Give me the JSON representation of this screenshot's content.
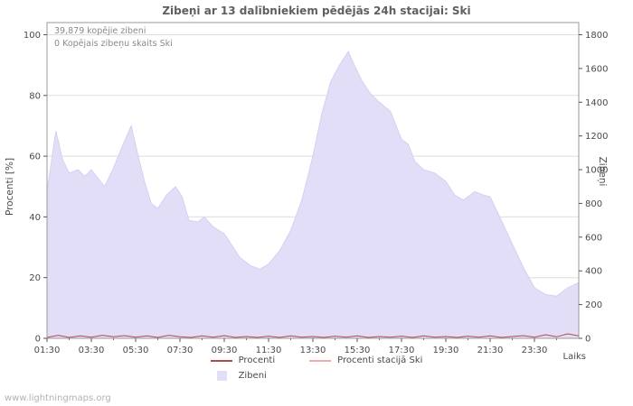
{
  "title": "Zibeņi ar 13 dalībniekiem pēdējās 24h stacijai: Ski",
  "watermark": "www.lightningmaps.org",
  "annotations": {
    "total": "39,879 kopējie zibeni",
    "station": "0 Kopējais zibeņu skaits Ski"
  },
  "axes": {
    "left_label": "Procenti  [%]",
    "right_label": "Zibeņi",
    "x_label": "Laiks",
    "left_ticks": [
      0,
      20,
      40,
      60,
      80,
      100
    ],
    "right_ticks": [
      0,
      200,
      400,
      600,
      800,
      1000,
      1200,
      1400,
      1600,
      1800
    ],
    "x_ticks": [
      "01:30",
      "03:30",
      "05:30",
      "07:30",
      "09:30",
      "11:30",
      "13:30",
      "15:30",
      "17:30",
      "19:30",
      "21:30",
      "23:30"
    ]
  },
  "legend": [
    {
      "label": "Procenti",
      "type": "line",
      "color": "#b04a4a"
    },
    {
      "label": "Procenti stacijā Ski",
      "type": "line",
      "color": "#f2a9a9"
    },
    {
      "label": "Zibeni",
      "type": "area",
      "color": "#e3def8"
    }
  ],
  "chart_data": {
    "type": "area",
    "title": "Zibeņi ar 13 dalībniekiem pēdējās 24h stacijai: Ski",
    "xlabel": "Laiks",
    "x_unit": "hours since 01:30",
    "x_range": [
      0,
      24
    ],
    "left_axis": {
      "label": "Procenti [%]",
      "range": [
        0,
        100
      ]
    },
    "right_axis": {
      "label": "Zibeņi",
      "range": [
        0,
        1800
      ]
    },
    "grid": true,
    "legend_position": "bottom",
    "series": [
      {
        "name": "Zibeni",
        "axis": "right",
        "type": "area",
        "color": "#e3def8",
        "stroke": "#d6cff2",
        "points": [
          [
            0,
            870
          ],
          [
            0.4,
            1230
          ],
          [
            0.7,
            1060
          ],
          [
            1.0,
            980
          ],
          [
            1.4,
            1000
          ],
          [
            1.7,
            960
          ],
          [
            2.0,
            1000
          ],
          [
            2.3,
            950
          ],
          [
            2.6,
            900
          ],
          [
            3.0,
            1010
          ],
          [
            3.4,
            1140
          ],
          [
            3.8,
            1260
          ],
          [
            4.1,
            1090
          ],
          [
            4.4,
            930
          ],
          [
            4.7,
            800
          ],
          [
            5.0,
            770
          ],
          [
            5.4,
            850
          ],
          [
            5.8,
            900
          ],
          [
            6.1,
            840
          ],
          [
            6.4,
            700
          ],
          [
            6.8,
            690
          ],
          [
            7.1,
            720
          ],
          [
            7.5,
            660
          ],
          [
            8.0,
            620
          ],
          [
            8.3,
            560
          ],
          [
            8.7,
            480
          ],
          [
            9.2,
            430
          ],
          [
            9.6,
            410
          ],
          [
            10.0,
            440
          ],
          [
            10.5,
            520
          ],
          [
            11.0,
            640
          ],
          [
            11.5,
            820
          ],
          [
            12.0,
            1080
          ],
          [
            12.4,
            1330
          ],
          [
            12.8,
            1520
          ],
          [
            13.2,
            1620
          ],
          [
            13.6,
            1700
          ],
          [
            13.9,
            1610
          ],
          [
            14.2,
            1530
          ],
          [
            14.6,
            1450
          ],
          [
            15.0,
            1400
          ],
          [
            15.5,
            1345
          ],
          [
            16.0,
            1180
          ],
          [
            16.3,
            1150
          ],
          [
            16.6,
            1050
          ],
          [
            17.0,
            1000
          ],
          [
            17.5,
            980
          ],
          [
            18.0,
            930
          ],
          [
            18.4,
            850
          ],
          [
            18.8,
            820
          ],
          [
            19.3,
            870
          ],
          [
            19.7,
            850
          ],
          [
            20.0,
            840
          ],
          [
            20.5,
            700
          ],
          [
            21.0,
            560
          ],
          [
            21.5,
            420
          ],
          [
            22.0,
            300
          ],
          [
            22.5,
            260
          ],
          [
            23.0,
            250
          ],
          [
            23.5,
            300
          ],
          [
            24.0,
            330
          ]
        ]
      },
      {
        "name": "Procenti",
        "axis": "left",
        "type": "line",
        "color": "#b04a4a",
        "points": [
          [
            0,
            0.3
          ],
          [
            0.5,
            1.0
          ],
          [
            1,
            0.3
          ],
          [
            1.5,
            0.8
          ],
          [
            2,
            0.4
          ],
          [
            2.5,
            1.0
          ],
          [
            3,
            0.5
          ],
          [
            3.5,
            0.9
          ],
          [
            4,
            0.4
          ],
          [
            4.5,
            0.8
          ],
          [
            5,
            0.3
          ],
          [
            5.5,
            1.0
          ],
          [
            6,
            0.5
          ],
          [
            6.5,
            0.3
          ],
          [
            7,
            0.8
          ],
          [
            7.5,
            0.4
          ],
          [
            8,
            0.9
          ],
          [
            8.5,
            0.3
          ],
          [
            9,
            0.6
          ],
          [
            9.5,
            0.3
          ],
          [
            10,
            0.7
          ],
          [
            10.5,
            0.3
          ],
          [
            11,
            0.8
          ],
          [
            11.5,
            0.4
          ],
          [
            12,
            0.6
          ],
          [
            12.5,
            0.3
          ],
          [
            13,
            0.7
          ],
          [
            13.5,
            0.4
          ],
          [
            14,
            0.8
          ],
          [
            14.5,
            0.3
          ],
          [
            15,
            0.6
          ],
          [
            15.5,
            0.4
          ],
          [
            16,
            0.7
          ],
          [
            16.5,
            0.3
          ],
          [
            17,
            0.8
          ],
          [
            17.5,
            0.4
          ],
          [
            18,
            0.6
          ],
          [
            18.5,
            0.3
          ],
          [
            19,
            0.7
          ],
          [
            19.5,
            0.4
          ],
          [
            20,
            0.8
          ],
          [
            20.5,
            0.3
          ],
          [
            21,
            0.6
          ],
          [
            21.5,
            0.9
          ],
          [
            22,
            0.4
          ],
          [
            22.5,
            1.2
          ],
          [
            23,
            0.5
          ],
          [
            23.5,
            1.5
          ],
          [
            24,
            0.8
          ]
        ]
      },
      {
        "name": "Procenti stacijā Ski",
        "axis": "left",
        "type": "line",
        "color": "#f2a9a9",
        "points": [
          [
            0,
            0
          ],
          [
            24,
            0
          ]
        ]
      }
    ]
  }
}
